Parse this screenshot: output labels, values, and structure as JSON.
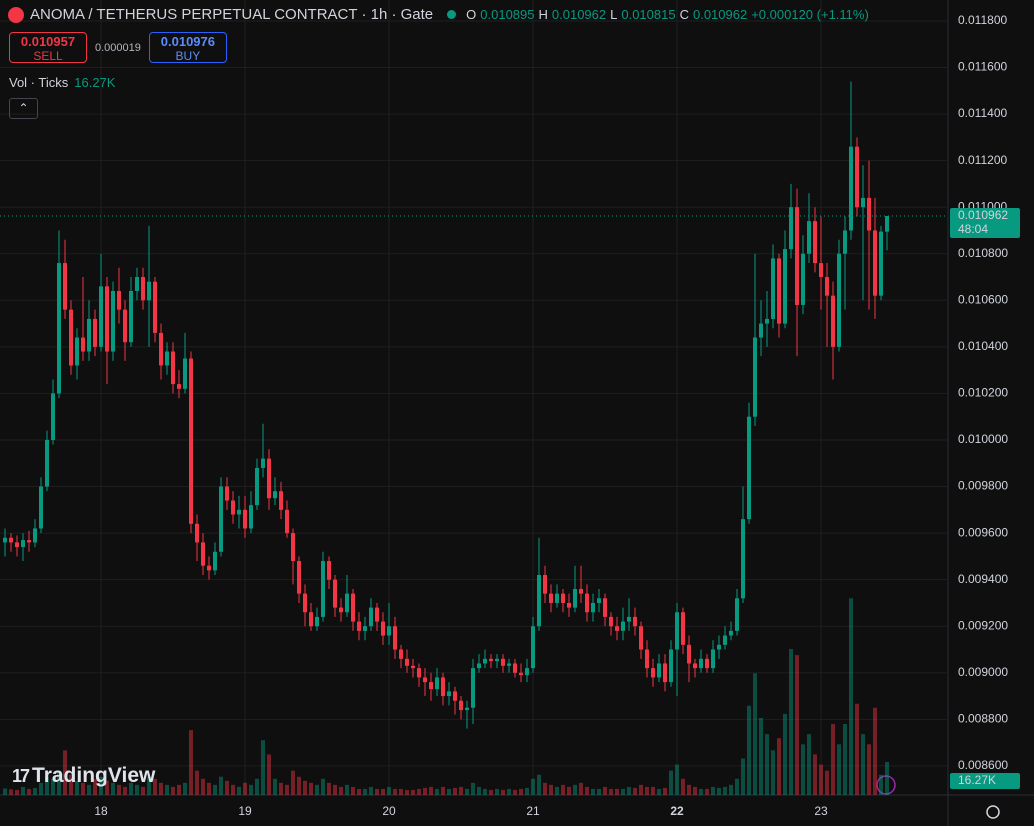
{
  "header": {
    "title": "ANOMA / TETHERUS PERPETUAL CONTRACT · 1h · Gate",
    "o_label": "O",
    "h_label": "H",
    "l_label": "L",
    "c_label": "C",
    "change": "+0.000120 (+1.11%)",
    "sell_price": "0.010957",
    "sell_label": "SELL",
    "spread": "0.000019",
    "buy_price": "0.010976",
    "buy_label": "BUY",
    "volume_title": "Vol · Ticks"
  },
  "chart_data": {
    "type": "candlestick",
    "categories": [
      null,
      null,
      null,
      null,
      null,
      null,
      null,
      null,
      null,
      null,
      null,
      null,
      null,
      null,
      null,
      null,
      "18",
      null,
      null,
      null,
      null,
      null,
      null,
      null,
      null,
      null,
      null,
      null,
      null,
      null,
      null,
      null,
      null,
      null,
      null,
      null,
      null,
      null,
      null,
      null,
      "19",
      null,
      null,
      null,
      null,
      null,
      null,
      null,
      null,
      null,
      null,
      null,
      null,
      null,
      null,
      null,
      null,
      null,
      null,
      null,
      null,
      null,
      null,
      null,
      "20",
      null,
      null,
      null,
      null,
      null,
      null,
      null,
      null,
      null,
      null,
      null,
      null,
      null,
      null,
      null,
      null,
      null,
      null,
      null,
      null,
      null,
      null,
      null,
      "21",
      null,
      null,
      null,
      null,
      null,
      null,
      null,
      null,
      null,
      null,
      null,
      null,
      null,
      null,
      null,
      null,
      null,
      null,
      null,
      null,
      null,
      null,
      null,
      "22",
      null,
      null,
      null,
      null,
      null,
      null,
      null,
      null,
      null,
      null,
      null,
      null,
      null,
      null,
      null,
      null,
      null,
      null,
      null,
      null,
      null,
      null,
      null,
      "23",
      null,
      null,
      null,
      null,
      null,
      null,
      null,
      null,
      null,
      null,
      null
    ],
    "open": [
      0.00956,
      0.00958,
      0.00956,
      0.00954,
      0.00957,
      0.00956,
      0.00962,
      0.0098,
      0.01,
      0.0102,
      0.01076,
      0.01056,
      0.01032,
      0.01044,
      0.01038,
      0.01052,
      0.0104,
      0.01066,
      0.01038,
      0.01064,
      0.01056,
      0.01042,
      0.01064,
      0.0107,
      0.0106,
      0.01068,
      0.01046,
      0.01032,
      0.01038,
      0.01024,
      0.01022,
      0.01035,
      0.00964,
      0.00956,
      0.00946,
      0.00944,
      0.00952,
      0.0098,
      0.00974,
      0.00968,
      0.0097,
      0.00962,
      0.00972,
      0.00988,
      0.00992,
      0.00975,
      0.00978,
      0.0097,
      0.0096,
      0.00948,
      0.00934,
      0.00926,
      0.0092,
      0.00924,
      0.00948,
      0.0094,
      0.00928,
      0.00926,
      0.00934,
      0.00922,
      0.00918,
      0.0092,
      0.00928,
      0.00922,
      0.00916,
      0.0092,
      0.0091,
      0.00906,
      0.00903,
      0.00902,
      0.00898,
      0.00896,
      0.00893,
      0.00898,
      0.0089,
      0.00892,
      0.00888,
      0.00884,
      0.00885,
      0.00902,
      0.00904,
      0.00906,
      0.00905,
      0.00906,
      0.00903,
      0.00904,
      0.009,
      0.00899,
      0.00902,
      0.0092,
      0.00942,
      0.00934,
      0.0093,
      0.00934,
      0.0093,
      0.00928,
      0.00936,
      0.00934,
      0.00926,
      0.0093,
      0.00932,
      0.00924,
      0.0092,
      0.00918,
      0.00922,
      0.00924,
      0.0092,
      0.0091,
      0.00902,
      0.00898,
      0.00904,
      0.00896,
      0.0091,
      0.00926,
      0.00912,
      0.00904,
      0.00902,
      0.00906,
      0.00902,
      0.0091,
      0.00912,
      0.00916,
      0.00918,
      0.00932,
      0.00966,
      0.0101,
      0.01044,
      0.0105,
      0.01052,
      0.01078,
      0.0105,
      0.01082,
      0.011,
      0.01058,
      0.0108,
      0.01094,
      0.01076,
      0.0107,
      0.01062,
      0.0104,
      0.0108,
      0.0109,
      0.01126,
      0.011,
      0.01104,
      0.0109,
      0.01062,
      0.010895
    ],
    "high": [
      0.00962,
      0.0096,
      0.00959,
      0.0096,
      0.00961,
      0.00966,
      0.00984,
      0.01004,
      0.01026,
      0.0109,
      0.01086,
      0.0106,
      0.01048,
      0.0107,
      0.0106,
      0.01056,
      0.0108,
      0.0107,
      0.01068,
      0.01074,
      0.0106,
      0.0107,
      0.01074,
      0.01074,
      0.01092,
      0.0107,
      0.0105,
      0.01042,
      0.01042,
      0.0103,
      0.01046,
      0.01038,
      0.00968,
      0.0096,
      0.0095,
      0.00956,
      0.00984,
      0.00984,
      0.00978,
      0.00976,
      0.00976,
      0.00978,
      0.00992,
      0.01007,
      0.00996,
      0.00984,
      0.00982,
      0.00974,
      0.00962,
      0.0095,
      0.00938,
      0.0093,
      0.00928,
      0.00952,
      0.0095,
      0.00942,
      0.00932,
      0.00942,
      0.00936,
      0.00926,
      0.00924,
      0.00932,
      0.0093,
      0.00926,
      0.0093,
      0.00924,
      0.00912,
      0.0091,
      0.00906,
      0.00904,
      0.00902,
      0.009,
      0.00902,
      0.009,
      0.00896,
      0.00894,
      0.0089,
      0.00888,
      0.00906,
      0.00908,
      0.0091,
      0.00908,
      0.00908,
      0.00908,
      0.00906,
      0.00906,
      0.00904,
      0.00906,
      0.00924,
      0.00958,
      0.00946,
      0.00938,
      0.00938,
      0.00936,
      0.00934,
      0.00946,
      0.00946,
      0.00938,
      0.00934,
      0.00936,
      0.00934,
      0.00926,
      0.00924,
      0.00928,
      0.00932,
      0.00928,
      0.00922,
      0.00914,
      0.00906,
      0.00908,
      0.00908,
      0.00914,
      0.0093,
      0.00928,
      0.00916,
      0.00906,
      0.0091,
      0.00908,
      0.00914,
      0.00916,
      0.0092,
      0.00922,
      0.00936,
      0.0098,
      0.01016,
      0.0108,
      0.0106,
      0.01064,
      0.01084,
      0.0108,
      0.0109,
      0.0111,
      0.01108,
      0.01088,
      0.01106,
      0.011,
      0.01096,
      0.01076,
      0.01068,
      0.01086,
      0.01096,
      0.01154,
      0.0113,
      0.01118,
      0.0112,
      0.01104,
      0.01092,
      0.010962
    ],
    "low": [
      0.0095,
      0.00952,
      0.0095,
      0.00948,
      0.00952,
      0.00954,
      0.0096,
      0.00978,
      0.00998,
      0.01018,
      0.01052,
      0.01028,
      0.01026,
      0.01034,
      0.01034,
      0.01036,
      0.01038,
      0.01024,
      0.01034,
      0.0105,
      0.01034,
      0.0104,
      0.0106,
      0.01056,
      0.0104,
      0.01042,
      0.01026,
      0.01028,
      0.0102,
      0.01018,
      0.0102,
      0.0096,
      0.00948,
      0.00942,
      0.0094,
      0.00942,
      0.0095,
      0.0097,
      0.00964,
      0.00962,
      0.00958,
      0.0096,
      0.0097,
      0.00984,
      0.0097,
      0.00972,
      0.00966,
      0.00958,
      0.00938,
      0.0093,
      0.0092,
      0.00918,
      0.00918,
      0.00922,
      0.00936,
      0.00924,
      0.00922,
      0.00924,
      0.00918,
      0.00914,
      0.00914,
      0.00918,
      0.00918,
      0.00912,
      0.00912,
      0.00906,
      0.00902,
      0.009,
      0.00898,
      0.00894,
      0.0089,
      0.00888,
      0.0089,
      0.00886,
      0.00886,
      0.00882,
      0.0088,
      0.00876,
      0.00878,
      0.009,
      0.00902,
      0.00902,
      0.00902,
      0.009,
      0.009,
      0.00898,
      0.00896,
      0.00896,
      0.009,
      0.00918,
      0.0093,
      0.00926,
      0.00928,
      0.00926,
      0.00924,
      0.00926,
      0.0093,
      0.00922,
      0.00922,
      0.00926,
      0.0092,
      0.00916,
      0.00914,
      0.00914,
      0.00918,
      0.00916,
      0.00906,
      0.00898,
      0.00894,
      0.00896,
      0.00892,
      0.00894,
      0.0089,
      0.00908,
      0.00896,
      0.00898,
      0.009,
      0.009,
      0.009,
      0.00906,
      0.0091,
      0.00914,
      0.00916,
      0.0093,
      0.00964,
      0.01006,
      0.01036,
      0.0104,
      0.01048,
      0.01044,
      0.01048,
      0.01078,
      0.01036,
      0.01054,
      0.01076,
      0.01072,
      0.01056,
      0.0104,
      0.01026,
      0.01038,
      0.01056,
      0.01086,
      0.01096,
      0.0106,
      0.01056,
      0.01052,
      0.0106,
      0.010815
    ],
    "close": [
      0.00958,
      0.00956,
      0.00954,
      0.00957,
      0.00956,
      0.00962,
      0.0098,
      0.01,
      0.0102,
      0.01076,
      0.01056,
      0.01032,
      0.01044,
      0.01038,
      0.01052,
      0.0104,
      0.01066,
      0.01038,
      0.01064,
      0.01056,
      0.01042,
      0.01064,
      0.0107,
      0.0106,
      0.01068,
      0.01046,
      0.01032,
      0.01038,
      0.01024,
      0.01022,
      0.01035,
      0.00964,
      0.00956,
      0.00946,
      0.00944,
      0.00952,
      0.0098,
      0.00974,
      0.00968,
      0.0097,
      0.00962,
      0.00972,
      0.00988,
      0.00992,
      0.00975,
      0.00978,
      0.0097,
      0.0096,
      0.00948,
      0.00934,
      0.00926,
      0.0092,
      0.00924,
      0.00948,
      0.0094,
      0.00928,
      0.00926,
      0.00934,
      0.00922,
      0.00918,
      0.0092,
      0.00928,
      0.00922,
      0.00916,
      0.0092,
      0.0091,
      0.00906,
      0.00903,
      0.00902,
      0.00898,
      0.00896,
      0.00893,
      0.00898,
      0.0089,
      0.00892,
      0.00888,
      0.00884,
      0.00885,
      0.00902,
      0.00904,
      0.00906,
      0.00905,
      0.00906,
      0.00903,
      0.00904,
      0.009,
      0.00899,
      0.00902,
      0.0092,
      0.00942,
      0.00934,
      0.0093,
      0.00934,
      0.0093,
      0.00928,
      0.00936,
      0.00934,
      0.00926,
      0.0093,
      0.00932,
      0.00924,
      0.0092,
      0.00918,
      0.00922,
      0.00924,
      0.0092,
      0.0091,
      0.00902,
      0.00898,
      0.00904,
      0.00896,
      0.0091,
      0.00926,
      0.00912,
      0.00904,
      0.00902,
      0.00906,
      0.00902,
      0.0091,
      0.00912,
      0.00916,
      0.00918,
      0.00932,
      0.00966,
      0.0101,
      0.01044,
      0.0105,
      0.01052,
      0.01078,
      0.0105,
      0.01082,
      0.011,
      0.01058,
      0.0108,
      0.01094,
      0.01076,
      0.0107,
      0.01062,
      0.0104,
      0.0108,
      0.0109,
      0.01126,
      0.011,
      0.01104,
      0.0109,
      0.01062,
      0.010895,
      0.010962
    ],
    "volume": [
      3200,
      2800,
      2500,
      4000,
      3000,
      3500,
      6000,
      9000,
      8000,
      12000,
      22000,
      10000,
      7000,
      6000,
      5000,
      8000,
      9000,
      7000,
      6000,
      5000,
      4000,
      6000,
      5000,
      4000,
      9000,
      8000,
      6000,
      5000,
      4000,
      5000,
      6000,
      32000,
      12000,
      8000,
      6000,
      5000,
      9000,
      7000,
      5000,
      4000,
      6000,
      5000,
      8000,
      27000,
      20000,
      8000,
      6000,
      5000,
      12000,
      9000,
      7000,
      6000,
      5000,
      8000,
      6000,
      5000,
      4000,
      5000,
      4000,
      3000,
      3000,
      4000,
      3000,
      3000,
      4000,
      3000,
      3000,
      2500,
      2500,
      3000,
      3500,
      4000,
      3000,
      4000,
      3000,
      3500,
      4000,
      3000,
      6000,
      4000,
      3000,
      2500,
      3000,
      2500,
      3000,
      2500,
      3000,
      3500,
      8000,
      10000,
      6000,
      5000,
      4000,
      5000,
      4000,
      5000,
      6000,
      4000,
      3000,
      3000,
      4000,
      3000,
      3000,
      3000,
      4000,
      3500,
      5000,
      4000,
      4000,
      3000,
      3500,
      12000,
      15000,
      8000,
      5000,
      4000,
      3000,
      3000,
      4000,
      3500,
      4000,
      5000,
      8000,
      18000,
      44000,
      60000,
      38000,
      30000,
      22000,
      28000,
      40000,
      72000,
      69000,
      25000,
      30000,
      20000,
      15000,
      12000,
      35000,
      25000,
      35000,
      97000,
      45000,
      30000,
      25000,
      43000,
      10000,
      16270
    ],
    "volume_label": "16.27K",
    "volume_ylim": [
      0,
      392000
    ],
    "up_color": "#089981",
    "down_color": "#f23645",
    "ylim": [
      0.008475,
      0.01189
    ],
    "yticks": [
      {
        "value": 0.0086,
        "label": "0.008600"
      },
      {
        "value": 0.0088,
        "label": "0.008800"
      },
      {
        "value": 0.009,
        "label": "0.009000"
      },
      {
        "value": 0.0092,
        "label": "0.009200"
      },
      {
        "value": 0.0094,
        "label": "0.009400"
      },
      {
        "value": 0.0096,
        "label": "0.009600"
      },
      {
        "value": 0.0098,
        "label": "0.009800"
      },
      {
        "value": 0.01,
        "label": "0.010000"
      },
      {
        "value": 0.0102,
        "label": "0.010200"
      },
      {
        "value": 0.0104,
        "label": "0.010400"
      },
      {
        "value": 0.0106,
        "label": "0.010600"
      },
      {
        "value": 0.0108,
        "label": "0.010800"
      },
      {
        "value": 0.011,
        "label": "0.011000"
      },
      {
        "value": 0.0112,
        "label": "0.011200"
      },
      {
        "value": 0.0114,
        "label": "0.011400"
      },
      {
        "value": 0.0116,
        "label": "0.011600"
      },
      {
        "value": 0.0118,
        "label": "0.011800"
      }
    ],
    "grid": true,
    "countdown": "48:04",
    "watermark": "TradingView"
  }
}
